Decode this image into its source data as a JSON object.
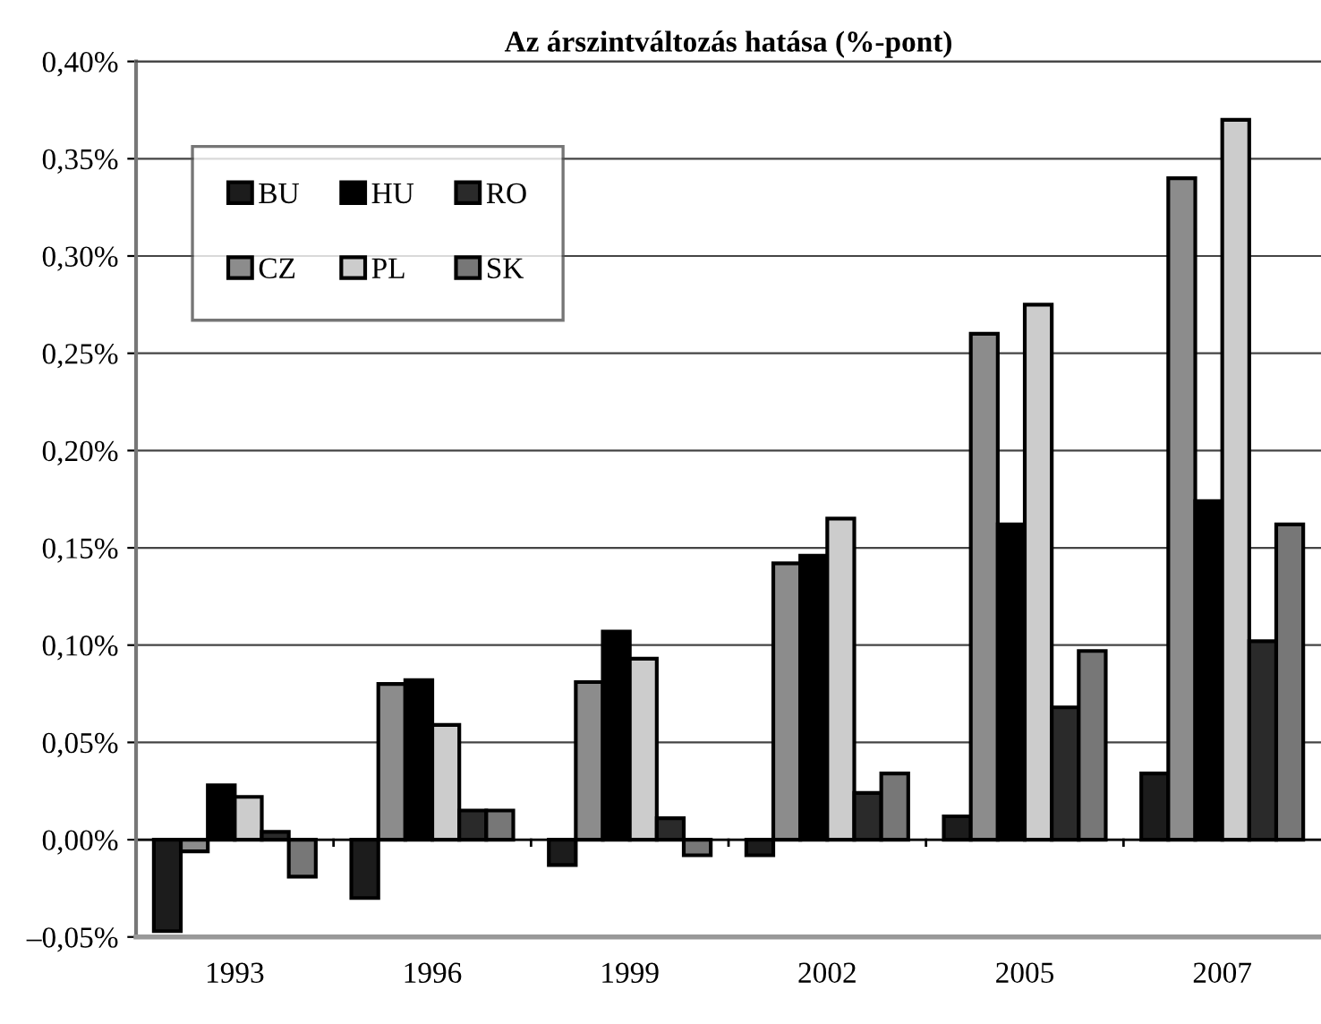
{
  "chart_data": {
    "type": "bar",
    "title": "Az árszintváltozás hatása (%-pont)",
    "categories": [
      "1993",
      "1996",
      "1999",
      "2002",
      "2005",
      "2007"
    ],
    "series": [
      {
        "name": "BU",
        "color": "#1c1c1c",
        "values": [
          -0.047,
          -0.03,
          -0.013,
          -0.008,
          0.012,
          0.034
        ]
      },
      {
        "name": "CZ",
        "color": "#8c8c8c",
        "values": [
          -0.006,
          0.08,
          0.081,
          0.142,
          0.26,
          0.34
        ]
      },
      {
        "name": "HU",
        "color": "#000000",
        "values": [
          0.028,
          0.082,
          0.107,
          0.146,
          0.162,
          0.174
        ]
      },
      {
        "name": "PL",
        "color": "#cccccc",
        "values": [
          0.022,
          0.059,
          0.093,
          0.165,
          0.275,
          0.37
        ]
      },
      {
        "name": "RO",
        "color": "#2a2a2a",
        "values": [
          0.004,
          0.015,
          0.011,
          0.024,
          0.068,
          0.102
        ]
      },
      {
        "name": "SK",
        "color": "#777777",
        "values": [
          -0.019,
          0.015,
          -0.008,
          0.034,
          0.097,
          0.162
        ]
      }
    ],
    "ylim": [
      -0.05,
      0.4
    ],
    "yticks": [
      {
        "value": -0.05,
        "label": "–0,05%"
      },
      {
        "value": 0,
        "label": "0,00%"
      },
      {
        "value": 0.05,
        "label": "0,05%"
      },
      {
        "value": 0.1,
        "label": "0,10%"
      },
      {
        "value": 0.15,
        "label": "0,15%"
      },
      {
        "value": 0.2,
        "label": "0,20%"
      },
      {
        "value": 0.25,
        "label": "0,25%"
      },
      {
        "value": 0.3,
        "label": "0,30%"
      },
      {
        "value": 0.35,
        "label": "0,35%"
      },
      {
        "value": 0.4,
        "label": "0,40%"
      }
    ],
    "grid": "y",
    "legend": "top left"
  }
}
